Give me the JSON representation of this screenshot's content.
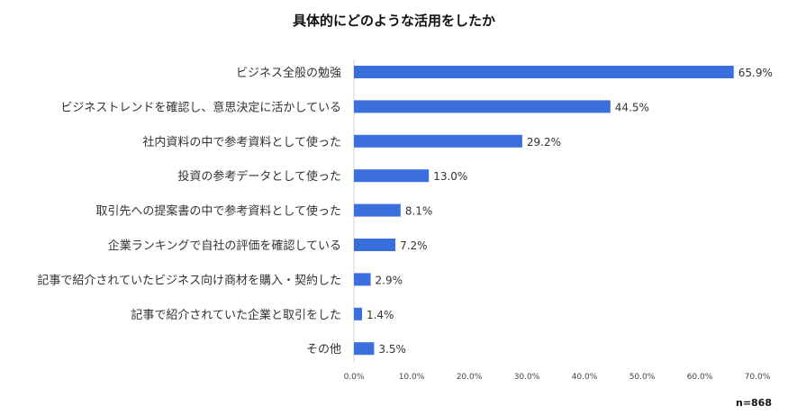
{
  "chart_data": {
    "type": "bar",
    "orientation": "horizontal",
    "title": "具体的にどのような活用をしたか",
    "categories": [
      "ビジネス全般の勉強",
      "ビジネストレンドを確認し、意思決定に活かしている",
      "社内資料の中で参考資料として使った",
      "投資の参考データとして使った",
      "取引先への提案書の中で参考資料として使った",
      "企業ランキングで自社の評価を確認している",
      "記事で紹介されていたビジネス向け商材を購入・契約した",
      "記事で紹介されていた企業と取引をした",
      "その他"
    ],
    "values": [
      65.9,
      44.5,
      29.2,
      13.0,
      8.1,
      7.2,
      2.9,
      1.4,
      3.5
    ],
    "value_labels": [
      "65.9%",
      "44.5%",
      "29.2%",
      "13.0%",
      "8.1%",
      "7.2%",
      "2.9%",
      "1.4%",
      "3.5%"
    ],
    "xlim": [
      0,
      70
    ],
    "xticks": [
      0,
      10,
      20,
      30,
      40,
      50,
      60,
      70
    ],
    "xtick_labels": [
      "0.0%",
      "10.0%",
      "20.0%",
      "30.0%",
      "40.0%",
      "50.0%",
      "60.0%",
      "70.0%"
    ],
    "xlabel": "",
    "ylabel": "",
    "grid": false,
    "legend": "none",
    "bar_color": "#3b6fde"
  },
  "sample_size": "n=868"
}
